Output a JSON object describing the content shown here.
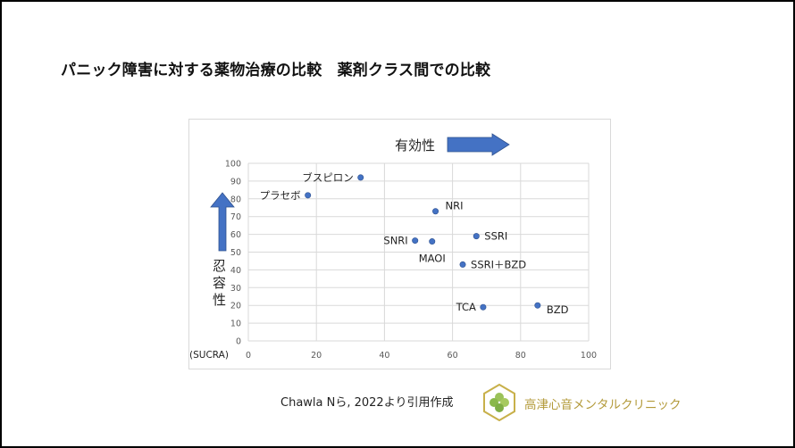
{
  "slide": {
    "title": "パニック障害に対する薬物治療の比較　薬剤クラス間での比較",
    "credit": "Chawla Nら, 2022より引用作成",
    "clinic_name": "高津心音メンタルクリニック",
    "logo_icon": "clover-hexagon-logo-icon"
  },
  "chart_data": {
    "type": "scatter",
    "xlabel": "有効性",
    "ylabel": "忍容性",
    "unit_label": "(SUCRA)",
    "xlim": [
      0,
      100
    ],
    "ylim": [
      0,
      100
    ],
    "x_ticks": [
      "0",
      "20",
      "40",
      "60",
      "80",
      "100"
    ],
    "y_ticks": [
      "0",
      "10",
      "20",
      "30",
      "40",
      "50",
      "60",
      "70",
      "80",
      "90",
      "100"
    ],
    "grid": true,
    "point_color": "#4472c4",
    "arrow_color": "#4472c4",
    "points": [
      {
        "label": "ブスピロン",
        "x": 33,
        "y": 92,
        "label_side": "left"
      },
      {
        "label": "プラセボ",
        "x": 17.5,
        "y": 82,
        "label_side": "left"
      },
      {
        "label": "NRI",
        "x": 55,
        "y": 73,
        "label_side": "right-up"
      },
      {
        "label": "SSRI",
        "x": 67,
        "y": 59,
        "label_side": "right"
      },
      {
        "label": "SNRI",
        "x": 49,
        "y": 56.5,
        "label_side": "left"
      },
      {
        "label": "MAOI",
        "x": 54,
        "y": 56,
        "label_side": "below"
      },
      {
        "label": "SSRI＋BZD",
        "x": 63,
        "y": 43,
        "label_side": "right"
      },
      {
        "label": "TCA",
        "x": 69,
        "y": 19,
        "label_side": "left"
      },
      {
        "label": "BZD",
        "x": 85,
        "y": 20,
        "label_side": "right-down"
      }
    ]
  }
}
